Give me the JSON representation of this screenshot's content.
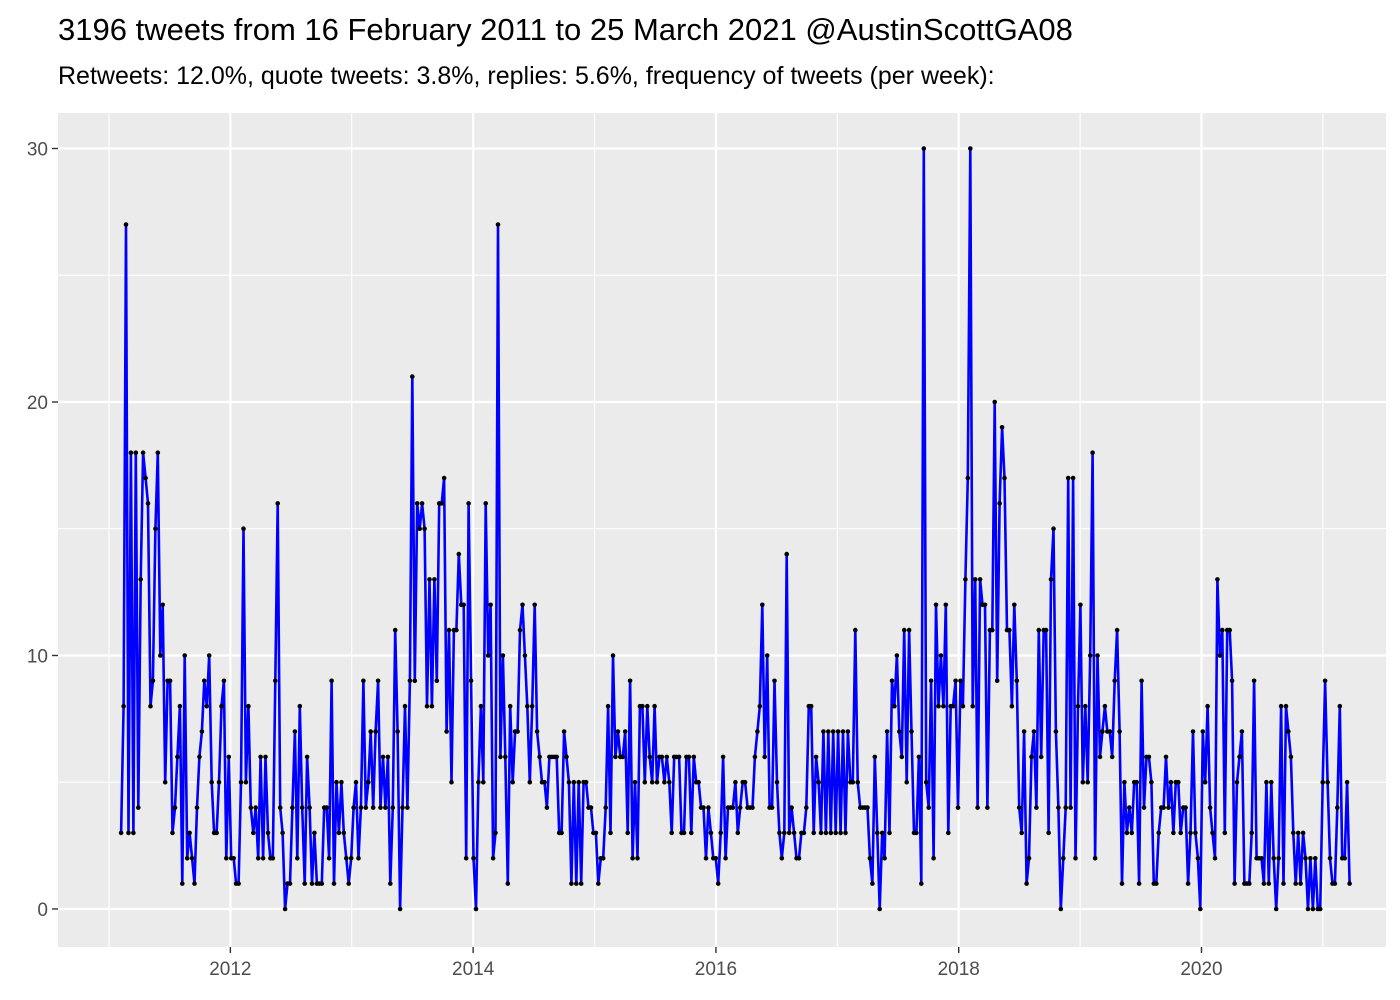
{
  "chart_data": {
    "type": "line",
    "title": "3196 tweets from 16 February 2011 to 25 March 2021 @AustinScottGA08",
    "subtitle": "Retweets: 12.0%, quote tweets: 3.8%, replies: 5.6%, frequency of tweets (per week):",
    "xlabel": "",
    "ylabel": "",
    "xlim": [
      2010.58,
      2021.52
    ],
    "ylim": [
      -1.5,
      31.4
    ],
    "x_ticks": [
      2012,
      2014,
      2016,
      2018,
      2020
    ],
    "x_tick_labels": [
      "2012",
      "2014",
      "2016",
      "2018",
      "2020"
    ],
    "y_ticks": [
      0,
      10,
      20,
      30
    ],
    "y_tick_labels": [
      "0",
      "10",
      "20",
      "30"
    ],
    "grid": true,
    "colors": {
      "line": "#0000ff",
      "points": "#000000",
      "panel": "#ebebeb",
      "grid": "#ffffff",
      "tick_text": "#4d4d4d"
    },
    "series": [
      {
        "values": [
          3,
          8,
          27,
          3,
          18,
          3,
          18,
          4,
          13,
          18,
          17,
          16,
          8,
          9,
          15,
          18,
          10,
          12,
          5,
          9,
          9,
          3,
          4,
          6,
          8,
          1,
          10,
          2,
          3,
          2,
          1,
          4,
          6,
          7,
          9,
          8,
          10,
          5,
          3,
          3,
          5,
          8,
          9,
          2,
          6,
          2,
          2,
          1,
          1,
          5,
          15,
          5,
          8,
          4,
          3,
          4,
          2,
          6,
          2,
          6,
          3,
          2,
          2,
          9,
          16,
          4,
          3,
          0,
          1,
          1,
          4,
          7,
          2,
          8,
          4,
          1,
          6,
          4,
          1,
          3,
          1,
          1,
          1,
          4,
          4,
          2,
          9,
          1,
          5,
          3,
          5,
          3,
          2,
          1,
          2,
          4,
          5,
          2,
          4,
          9,
          4,
          5,
          7,
          4,
          7,
          9,
          4,
          6,
          4,
          6,
          1,
          4,
          11,
          7,
          0,
          4,
          8,
          4,
          9,
          21,
          9,
          16,
          15,
          16,
          15,
          8,
          13,
          8,
          13,
          9,
          16,
          16,
          17,
          7,
          11,
          5,
          11,
          11,
          14,
          12,
          12,
          2,
          16,
          9,
          2,
          0,
          5,
          8,
          5,
          16,
          10,
          12,
          2,
          3,
          27,
          6,
          10,
          6,
          1,
          8,
          5,
          7,
          7,
          11,
          12,
          10,
          8,
          5,
          8,
          12,
          7,
          6,
          5,
          5,
          4,
          6,
          6,
          6,
          6,
          3,
          3,
          7,
          6,
          5,
          1,
          5,
          1,
          5,
          1,
          5,
          5,
          4,
          4,
          3,
          3,
          1,
          2,
          2,
          4,
          8,
          3,
          10,
          6,
          7,
          6,
          6,
          7,
          3,
          9,
          2,
          5,
          2,
          8,
          8,
          5,
          8,
          6,
          5,
          8,
          5,
          6,
          6,
          5,
          6,
          5,
          3,
          6,
          6,
          6,
          3,
          3,
          6,
          6,
          3,
          6,
          5,
          5,
          4,
          4,
          2,
          4,
          3,
          2,
          2,
          1,
          3,
          6,
          2,
          4,
          4,
          4,
          5,
          3,
          4,
          5,
          5,
          4,
          4,
          4,
          6,
          7,
          8,
          12,
          6,
          10,
          4,
          4,
          9,
          5,
          3,
          2,
          3,
          14,
          3,
          4,
          3,
          2,
          2,
          3,
          3,
          4,
          8,
          8,
          3,
          6,
          5,
          3,
          7,
          3,
          7,
          3,
          7,
          3,
          7,
          3,
          7,
          3,
          7,
          5,
          5,
          11,
          5,
          4,
          4,
          4,
          4,
          2,
          1,
          6,
          3,
          0,
          3,
          2,
          7,
          3,
          9,
          8,
          10,
          7,
          6,
          11,
          5,
          11,
          7,
          3,
          3,
          6,
          1,
          30,
          5,
          4,
          9,
          2,
          12,
          8,
          10,
          8,
          12,
          3,
          8,
          8,
          9,
          4,
          9,
          8,
          13,
          17,
          30,
          8,
          13,
          4,
          13,
          12,
          12,
          4,
          11,
          11,
          20,
          9,
          16,
          19,
          17,
          11,
          11,
          8,
          12,
          9,
          4,
          3,
          7,
          1,
          2,
          6,
          7,
          4,
          11,
          6,
          11,
          11,
          3,
          13,
          15,
          7,
          4,
          0,
          2,
          4,
          17,
          4,
          17,
          2,
          8,
          12,
          5,
          8,
          5,
          10,
          18,
          2,
          10,
          6,
          7,
          8,
          7,
          7,
          6,
          9,
          11,
          7,
          1,
          5,
          3,
          4,
          3,
          5,
          5,
          1,
          9,
          4,
          6,
          6,
          5,
          1,
          1,
          3,
          4,
          4,
          6,
          4,
          5,
          3,
          5,
          5,
          3,
          4,
          4,
          1,
          3,
          7,
          3,
          2,
          0,
          7,
          5,
          8,
          4,
          3,
          2,
          13,
          10,
          11,
          3,
          11,
          11,
          9,
          1,
          5,
          6,
          7,
          1,
          1,
          1,
          3,
          9,
          2,
          2,
          2,
          1,
          5,
          1,
          5,
          2,
          0,
          2,
          8,
          1,
          8,
          7,
          6,
          3,
          1,
          3,
          1,
          3,
          2,
          0,
          2,
          0,
          2,
          0,
          0,
          5,
          9,
          5,
          2,
          1,
          1,
          4,
          8,
          2,
          2,
          5,
          1
        ]
      }
    ]
  }
}
